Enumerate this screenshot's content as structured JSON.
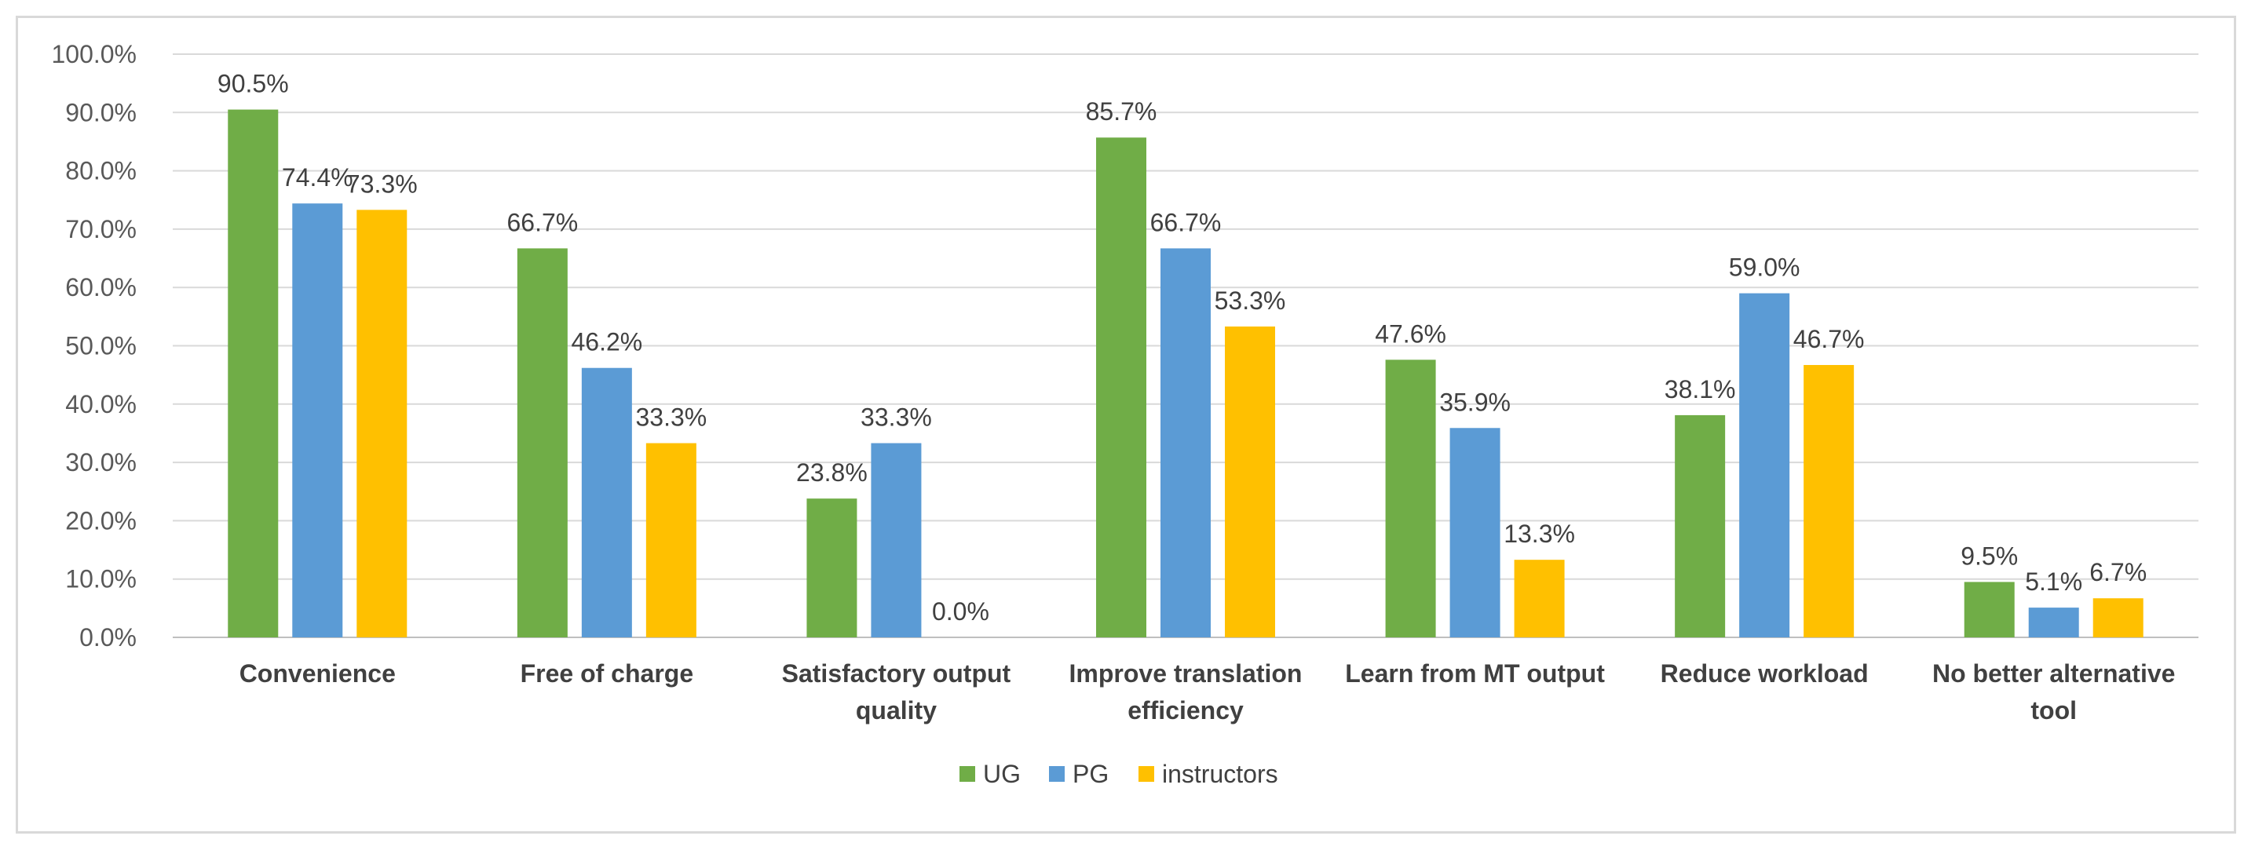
{
  "chart_data": {
    "type": "bar",
    "title": "",
    "xlabel": "",
    "ylabel": "",
    "ylim": [
      0,
      100
    ],
    "ytick_step": 10,
    "ytick_labels": [
      "0.0%",
      "10.0%",
      "20.0%",
      "30.0%",
      "40.0%",
      "50.0%",
      "60.0%",
      "70.0%",
      "80.0%",
      "90.0%",
      "100.0%"
    ],
    "grid": true,
    "legend_position": "bottom",
    "categories": [
      [
        "Convenience"
      ],
      [
        "Free of charge"
      ],
      [
        "Satisfactory output",
        "quality"
      ],
      [
        "Improve translation",
        "efficiency"
      ],
      [
        "Learn from MT output"
      ],
      [
        "Reduce workload"
      ],
      [
        "No better alternative",
        "tool"
      ]
    ],
    "series": [
      {
        "name": "UG",
        "color": "#70ad47",
        "values": [
          90.5,
          66.7,
          23.8,
          85.7,
          47.6,
          38.1,
          9.5
        ],
        "labels": [
          "90.5%",
          "66.7%",
          "23.8%",
          "85.7%",
          "47.6%",
          "38.1%",
          "9.5%"
        ]
      },
      {
        "name": "PG",
        "color": "#5b9bd5",
        "values": [
          74.4,
          46.2,
          33.3,
          66.7,
          35.9,
          59.0,
          5.1
        ],
        "labels": [
          "74.4%",
          "46.2%",
          "33.3%",
          "66.7%",
          "35.9%",
          "59.0%",
          "5.1%"
        ]
      },
      {
        "name": "instructors",
        "color": "#ffc000",
        "values": [
          73.3,
          33.3,
          0.0,
          53.3,
          13.3,
          46.7,
          6.7
        ],
        "labels": [
          "73.3%",
          "33.3%",
          "0.0%",
          "53.3%",
          "13.3%",
          "46.7%",
          "6.7%"
        ]
      }
    ]
  }
}
